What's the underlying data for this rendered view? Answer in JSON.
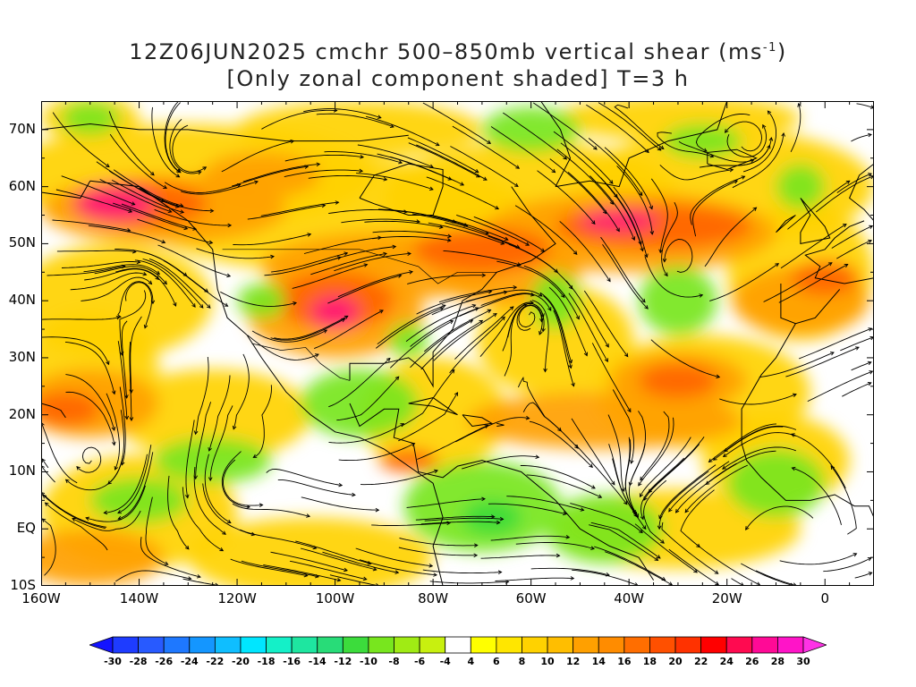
{
  "title": {
    "line1_prefix": "12Z06JUN2025 cmchr 500–850mb vertical shear (ms",
    "line1_sup": "-1",
    "line1_suffix": ")",
    "line2": "[Only zonal component shaded] T=3 h"
  },
  "axes": {
    "y_labels": [
      "70N",
      "60N",
      "50N",
      "40N",
      "30N",
      "20N",
      "10N",
      "EQ",
      "10S"
    ],
    "y_values": [
      70,
      60,
      50,
      40,
      30,
      20,
      10,
      0,
      -10
    ],
    "x_labels": [
      "160W",
      "140W",
      "120W",
      "100W",
      "80W",
      "60W",
      "40W",
      "20W",
      "0"
    ],
    "x_values": [
      -160,
      -140,
      -120,
      -100,
      -80,
      -60,
      -40,
      -20,
      0
    ],
    "lon_range": [
      -160,
      10
    ],
    "lat_range": [
      -10,
      75
    ]
  },
  "colorbar": {
    "labels": [
      "-30",
      "-28",
      "-26",
      "-24",
      "-22",
      "-20",
      "-18",
      "-16",
      "-14",
      "-12",
      "-10",
      "-8",
      "-6",
      "-4",
      "4",
      "6",
      "8",
      "10",
      "12",
      "14",
      "16",
      "18",
      "20",
      "22",
      "24",
      "26",
      "28",
      "30"
    ],
    "colors": [
      "#1414ff",
      "#1e3cff",
      "#285aff",
      "#1e78ff",
      "#1496ff",
      "#0fbeff",
      "#00e6ff",
      "#14f0c8",
      "#1ee6a0",
      "#28dc78",
      "#3cdc3c",
      "#78e61e",
      "#a0eb14",
      "#c8f00f",
      "#ffffff",
      "#ffff00",
      "#ffe600",
      "#ffd200",
      "#ffbe00",
      "#ffa000",
      "#ff8c00",
      "#ff6e00",
      "#ff5000",
      "#ff3200",
      "#ff0000",
      "#ff0a50",
      "#ff0a96",
      "#ff14c8",
      "#ff32e6"
    ]
  },
  "shading": {
    "strong_westerly": "#ff6400",
    "moderate_westerly": "#ffa000",
    "weak_westerly": "#ffd200",
    "very_strong": "#ff1478",
    "easterly": "#78e61e",
    "strong_easterly": "#3cdc3c"
  }
}
